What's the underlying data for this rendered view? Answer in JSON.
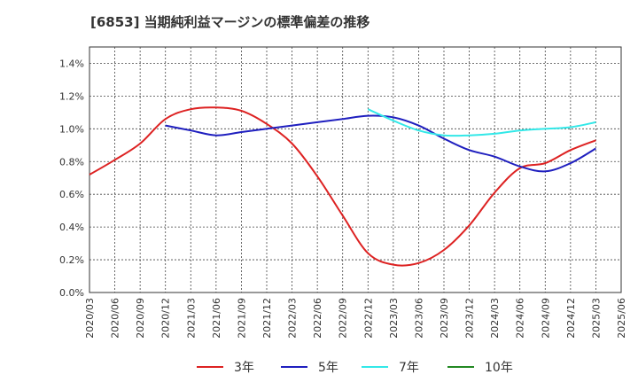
{
  "chart_data": {
    "type": "line",
    "title": "[6853]  当期純利益マージンの標準偏差の推移",
    "xlabel": "",
    "ylabel": "",
    "ylim": [
      0,
      1.5
    ],
    "y_ticks": [
      "0.0%",
      "0.2%",
      "0.4%",
      "0.6%",
      "0.8%",
      "1.0%",
      "1.2%",
      "1.4%"
    ],
    "x_ticks": [
      "2020/03",
      "2020/06",
      "2020/09",
      "2020/12",
      "2021/03",
      "2021/06",
      "2021/09",
      "2021/12",
      "2022/03",
      "2022/06",
      "2022/09",
      "2022/12",
      "2023/03",
      "2023/06",
      "2023/09",
      "2023/12",
      "2024/03",
      "2024/06",
      "2024/09",
      "2024/12",
      "2025/03",
      "2025/06"
    ],
    "grid": true,
    "legend_position": "bottom",
    "series": [
      {
        "name": "3年",
        "color": "#dd2222",
        "x": [
          "2020/03",
          "2020/06",
          "2020/09",
          "2020/12",
          "2021/03",
          "2021/06",
          "2021/09",
          "2021/12",
          "2022/03",
          "2022/06",
          "2022/09",
          "2022/12",
          "2023/03",
          "2023/06",
          "2023/09",
          "2023/12",
          "2024/03",
          "2024/06",
          "2024/09",
          "2024/12",
          "2025/03"
        ],
        "values": [
          0.72,
          0.81,
          0.91,
          1.06,
          1.12,
          1.13,
          1.11,
          1.03,
          0.91,
          0.71,
          0.47,
          0.24,
          0.17,
          0.18,
          0.26,
          0.41,
          0.61,
          0.76,
          0.79,
          0.87,
          0.93
        ]
      },
      {
        "name": "5年",
        "color": "#1f1fbf",
        "x": [
          "2020/12",
          "2021/03",
          "2021/06",
          "2021/09",
          "2021/12",
          "2022/03",
          "2022/06",
          "2022/09",
          "2022/12",
          "2023/03",
          "2023/06",
          "2023/09",
          "2023/12",
          "2024/03",
          "2024/06",
          "2024/09",
          "2024/12",
          "2025/03"
        ],
        "values": [
          1.02,
          0.99,
          0.96,
          0.98,
          1.0,
          1.02,
          1.04,
          1.06,
          1.08,
          1.07,
          1.02,
          0.94,
          0.87,
          0.83,
          0.77,
          0.74,
          0.79,
          0.88
        ]
      },
      {
        "name": "7年",
        "color": "#33e8e8",
        "x": [
          "2022/12",
          "2023/03",
          "2023/06",
          "2023/09",
          "2023/12",
          "2024/03",
          "2024/06",
          "2024/09",
          "2024/12",
          "2025/03"
        ],
        "values": [
          1.12,
          1.05,
          0.99,
          0.96,
          0.96,
          0.97,
          0.99,
          1.0,
          1.01,
          1.04
        ]
      },
      {
        "name": "10年",
        "color": "#228822",
        "x": [],
        "values": []
      }
    ]
  }
}
